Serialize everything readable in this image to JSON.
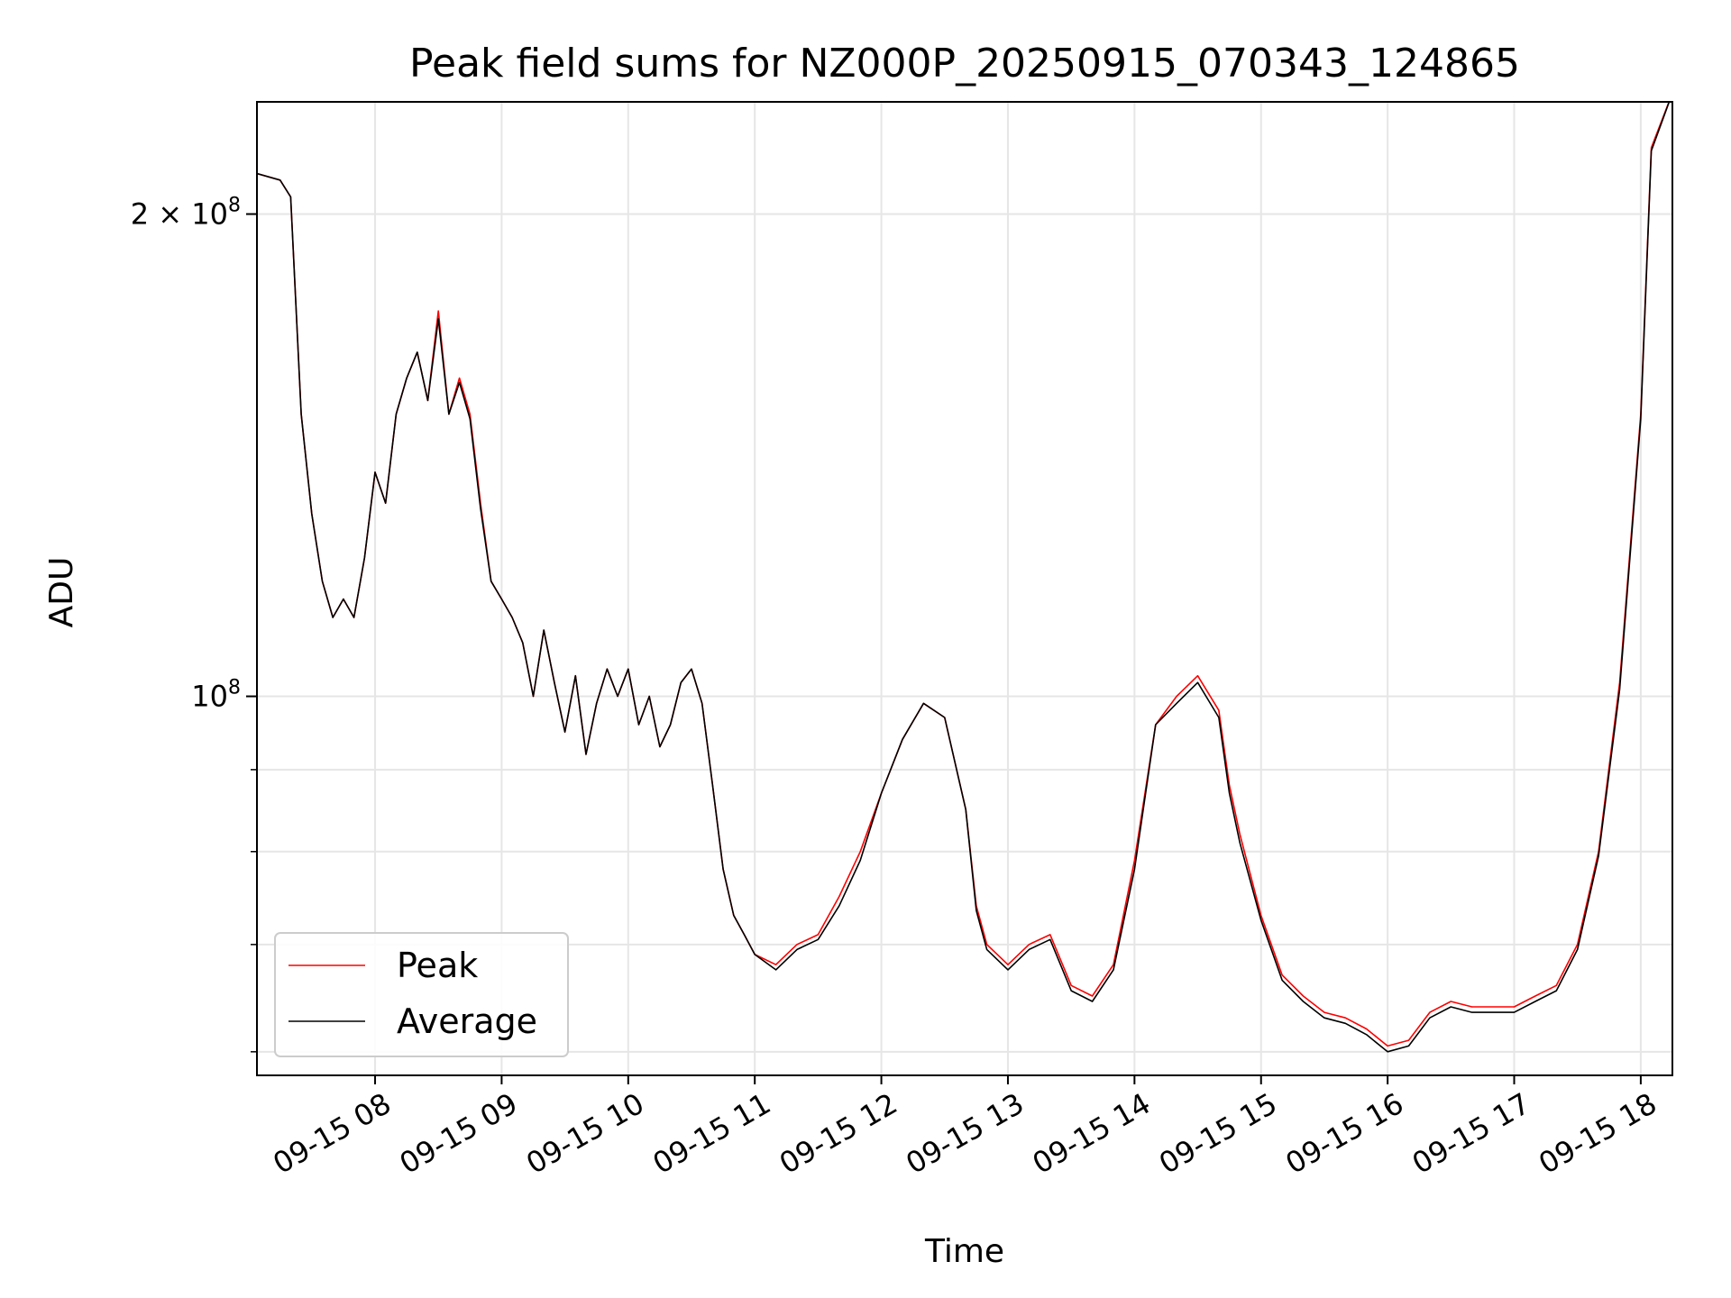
{
  "chart_data": {
    "type": "line",
    "title": "Peak field sums for NZ000P_20250915_070343_124865",
    "xlabel": "Time",
    "ylabel": "ADU",
    "yscale": "log",
    "xlim": [
      "2025-09-15 07:04",
      "2025-09-15 18:15"
    ],
    "ylim": [
      58000000,
      235000000
    ],
    "x_ticks": [
      "09-15 08",
      "09-15 09",
      "09-15 10",
      "09-15 11",
      "09-15 12",
      "09-15 13",
      "09-15 14",
      "09-15 15",
      "09-15 16",
      "09-15 17",
      "09-15 18"
    ],
    "y_tick_labels": [
      {
        "value": 200000000,
        "label": "2×10^8",
        "mantissa": "2 × 10",
        "exp": "8"
      },
      {
        "value": 100000000,
        "label": "10^8",
        "mantissa": "10",
        "exp": "8"
      }
    ],
    "y_minor_ticks": [
      60000000,
      70000000,
      80000000,
      90000000
    ],
    "grid": true,
    "legend_position": "lower-left",
    "x": [
      "07:04",
      "07:15",
      "07:20",
      "07:25",
      "07:30",
      "07:35",
      "07:40",
      "07:45",
      "07:50",
      "07:55",
      "08:00",
      "08:05",
      "08:10",
      "08:15",
      "08:20",
      "08:25",
      "08:30",
      "08:35",
      "08:40",
      "08:45",
      "08:50",
      "08:55",
      "09:00",
      "09:05",
      "09:10",
      "09:15",
      "09:20",
      "09:25",
      "09:30",
      "09:35",
      "09:40",
      "09:45",
      "09:50",
      "09:55",
      "10:00",
      "10:05",
      "10:10",
      "10:15",
      "10:20",
      "10:25",
      "10:30",
      "10:35",
      "10:40",
      "10:45",
      "10:50",
      "10:55",
      "11:00",
      "11:10",
      "11:20",
      "11:30",
      "11:40",
      "11:50",
      "12:00",
      "12:10",
      "12:20",
      "12:30",
      "12:40",
      "12:45",
      "12:50",
      "13:00",
      "13:10",
      "13:20",
      "13:30",
      "13:40",
      "13:50",
      "14:00",
      "14:10",
      "14:20",
      "14:30",
      "14:40",
      "14:45",
      "14:50",
      "15:00",
      "15:10",
      "15:20",
      "15:30",
      "15:40",
      "15:50",
      "16:00",
      "16:10",
      "16:20",
      "16:30",
      "16:40",
      "16:50",
      "17:00",
      "17:10",
      "17:20",
      "17:30",
      "17:40",
      "17:50",
      "18:00",
      "18:05",
      "18:15"
    ],
    "series": [
      {
        "name": "Peak",
        "color": "#ff0000",
        "values": [
          212000000,
          210000000,
          205000000,
          150000000,
          130000000,
          118000000,
          112000000,
          115000000,
          112000000,
          122000000,
          138000000,
          132000000,
          150000000,
          158000000,
          164000000,
          153000000,
          174000000,
          150000000,
          158000000,
          150000000,
          132000000,
          118000000,
          115000000,
          112000000,
          108000000,
          100000000,
          110000000,
          102000000,
          95000000,
          103000000,
          92000000,
          99000000,
          104000000,
          100000000,
          104000000,
          96000000,
          100000000,
          93000000,
          96000000,
          102000000,
          104000000,
          99000000,
          88000000,
          78000000,
          73000000,
          71000000,
          69000000,
          68000000,
          70000000,
          71000000,
          75000000,
          80000000,
          87000000,
          94000000,
          99000000,
          97000000,
          85000000,
          74000000,
          70000000,
          68000000,
          70000000,
          71000000,
          66000000,
          65000000,
          68000000,
          79000000,
          96000000,
          100000000,
          103000000,
          98000000,
          88000000,
          82000000,
          73000000,
          67000000,
          65000000,
          63500000,
          63000000,
          62000000,
          60500000,
          61000000,
          63500000,
          64500000,
          64000000,
          64000000,
          64000000,
          65000000,
          66000000,
          70000000,
          80000000,
          102000000,
          150000000,
          220000000,
          238000000
        ]
      },
      {
        "name": "Average",
        "color": "#000000",
        "values": [
          212000000,
          210000000,
          205000000,
          150000000,
          130000000,
          118000000,
          112000000,
          115000000,
          112000000,
          122000000,
          138000000,
          132000000,
          150000000,
          158000000,
          164000000,
          153000000,
          172000000,
          150000000,
          157000000,
          149000000,
          131000000,
          118000000,
          115000000,
          112000000,
          108000000,
          100000000,
          110000000,
          102000000,
          95000000,
          103000000,
          92000000,
          99000000,
          104000000,
          100000000,
          104000000,
          96000000,
          100000000,
          93000000,
          96000000,
          102000000,
          104000000,
          99000000,
          88000000,
          78000000,
          73000000,
          71000000,
          69000000,
          67500000,
          69500000,
          70500000,
          74000000,
          79000000,
          87000000,
          94000000,
          99000000,
          97000000,
          85000000,
          73500000,
          69500000,
          67500000,
          69500000,
          70500000,
          65500000,
          64500000,
          67500000,
          78000000,
          96000000,
          99000000,
          102000000,
          97000000,
          87000000,
          81000000,
          72500000,
          66500000,
          64500000,
          63000000,
          62500000,
          61500000,
          60000000,
          60500000,
          63000000,
          64000000,
          63500000,
          63500000,
          63500000,
          64500000,
          65500000,
          69500000,
          79500000,
          101000000,
          149000000,
          219000000,
          238000000
        ]
      }
    ]
  }
}
